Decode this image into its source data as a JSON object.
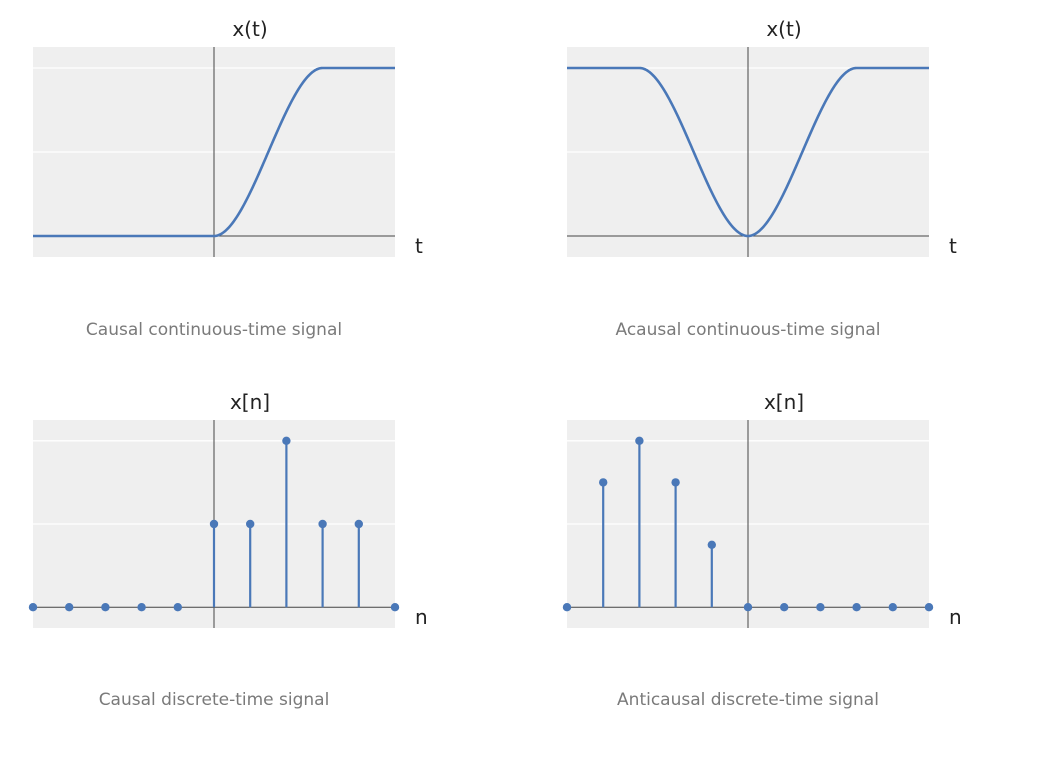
{
  "colors": {
    "series": "#4a78b8",
    "plot_bg": "#efefef",
    "grid": "#ffffff",
    "axis": "#444444",
    "caption": "#7a7a7a"
  },
  "chart_data": [
    {
      "type": "line",
      "function": "causal_rising_sigmoid",
      "ylabel": "x(t)",
      "xlabel": "t",
      "caption": "Causal continuous-time signal",
      "grid": true,
      "xlim": [
        -5,
        5
      ],
      "ylim": [
        -0.25,
        2.25
      ],
      "points": [
        [
          -5,
          0
        ],
        [
          -4,
          0
        ],
        [
          -3,
          0
        ],
        [
          -2,
          0
        ],
        [
          -1,
          0
        ],
        [
          0,
          0
        ],
        [
          0.5,
          0.2
        ],
        [
          1,
          0.75
        ],
        [
          1.5,
          1.4
        ],
        [
          2,
          1.82
        ],
        [
          2.5,
          1.97
        ],
        [
          3,
          2
        ],
        [
          4,
          2
        ],
        [
          5,
          2
        ]
      ]
    },
    {
      "type": "line",
      "function": "acausal_dip",
      "ylabel": "x(t)",
      "xlabel": "t",
      "caption": "Acausal continuous-time signal",
      "grid": true,
      "xlim": [
        -5,
        5
      ],
      "ylim": [
        -0.25,
        2.25
      ],
      "points": [
        [
          -5,
          2
        ],
        [
          -4,
          2
        ],
        [
          -3,
          2
        ],
        [
          -2.5,
          1.97
        ],
        [
          -2,
          1.82
        ],
        [
          -1.5,
          1.4
        ],
        [
          -1,
          0.75
        ],
        [
          -0.5,
          0.2
        ],
        [
          0,
          0
        ],
        [
          0.5,
          0.2
        ],
        [
          1,
          0.75
        ],
        [
          1.5,
          1.4
        ],
        [
          2,
          1.82
        ],
        [
          2.5,
          1.97
        ],
        [
          3,
          2
        ],
        [
          4,
          2
        ],
        [
          5,
          2
        ]
      ]
    },
    {
      "type": "stem",
      "ylabel": "x[n]",
      "xlabel": "n",
      "caption": "Causal discrete-time signal",
      "grid": true,
      "xlim": [
        -5,
        5
      ],
      "ylim": [
        -0.25,
        2.25
      ],
      "x": [
        -5,
        -4,
        -3,
        -2,
        -1,
        0,
        1,
        2,
        3,
        4,
        5
      ],
      "y": [
        0,
        0,
        0,
        0,
        0,
        1,
        1,
        2,
        1,
        1,
        0
      ]
    },
    {
      "type": "stem",
      "ylabel": "x[n]",
      "xlabel": "n",
      "caption": "Anticausal discrete-time signal",
      "grid": true,
      "xlim": [
        -5,
        5
      ],
      "ylim": [
        -0.25,
        2.25
      ],
      "x": [
        -5,
        -4,
        -3,
        -2,
        -1,
        0,
        1,
        2,
        3,
        4,
        5
      ],
      "y": [
        0,
        1.5,
        2,
        1.5,
        0.75,
        0,
        0,
        0,
        0,
        0,
        0
      ]
    }
  ]
}
